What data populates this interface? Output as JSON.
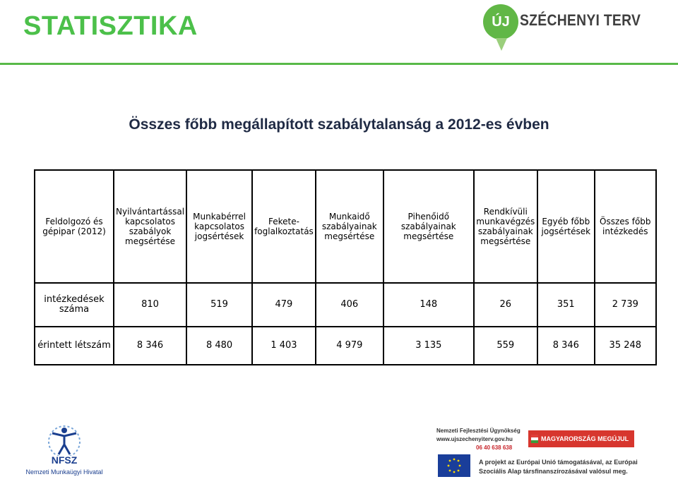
{
  "header": {
    "title": "STATISZTIKA",
    "logo_circle": "ÚJ",
    "logo_text": "SZÉCHENYI TERV",
    "brand_color": "#4cc04a"
  },
  "subtitle": "Összes főbb megállapított szabálytalanság a 2012-es évben",
  "table": {
    "header_row": [
      "Feldolgozó és gépipar (2012)",
      "Nyilvántartással kapcsolatos szabályok megsértése",
      "Munkabérrel kapcsolatos jogsértések",
      "Fekete-foglalkoztatás",
      "Munkaidő szabályainak megsértése",
      "Pihenőidő szabályainak megsértése",
      "Rendkívüli munkavégzés szabályainak megsértése",
      "Egyéb főbb jogsértések",
      "Összes főbb intézkedés"
    ],
    "rows": [
      {
        "label": "intézkedések száma",
        "values": [
          "810",
          "519",
          "479",
          "406",
          "148",
          "26",
          "351",
          "2 739"
        ]
      },
      {
        "label": "érintett létszám",
        "values": [
          "8 346",
          "8 480",
          "1 403",
          "4 979",
          "3 135",
          "559",
          "8 346",
          "35 248"
        ]
      }
    ]
  },
  "footer": {
    "nfsz_label": "NFSZ",
    "nfsz_sub": "Nemzeti Munkaügyi Hivatal",
    "nfu_name": "Nemzeti Fejlesztési Ügynökség",
    "nfu_web": "www.ujszechenyiterv.gov.hu",
    "nfu_phone": "06 40 638 638",
    "badge": "MAGYARORSZÁG MEGÚJUL",
    "eu_line1": "A projekt az Európai Unió támogatásával, az Európai",
    "eu_line2": "Szociális Alap társfinanszírozásával valósul meg."
  }
}
